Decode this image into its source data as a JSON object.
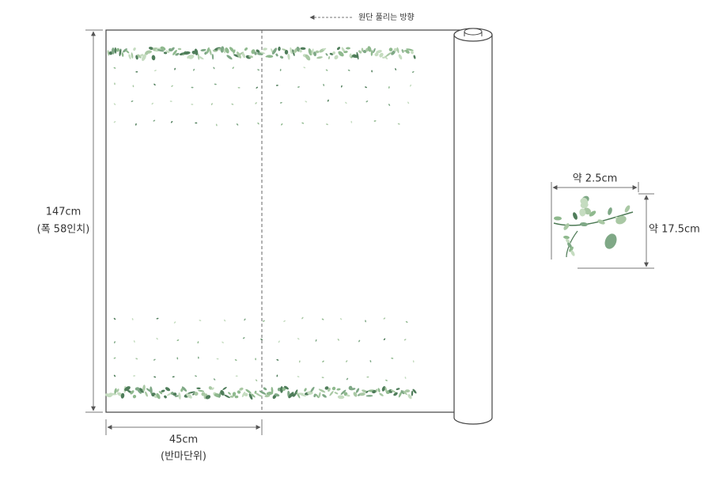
{
  "direction_label": "원단 풀리는 방향",
  "height": {
    "label": "147cm",
    "note": "(폭 58인치)"
  },
  "width": {
    "label": "45cm",
    "note": "(반마단위)"
  },
  "detail": {
    "width_label": "약 2.5cm",
    "height_label": "약 17.5cm"
  }
}
